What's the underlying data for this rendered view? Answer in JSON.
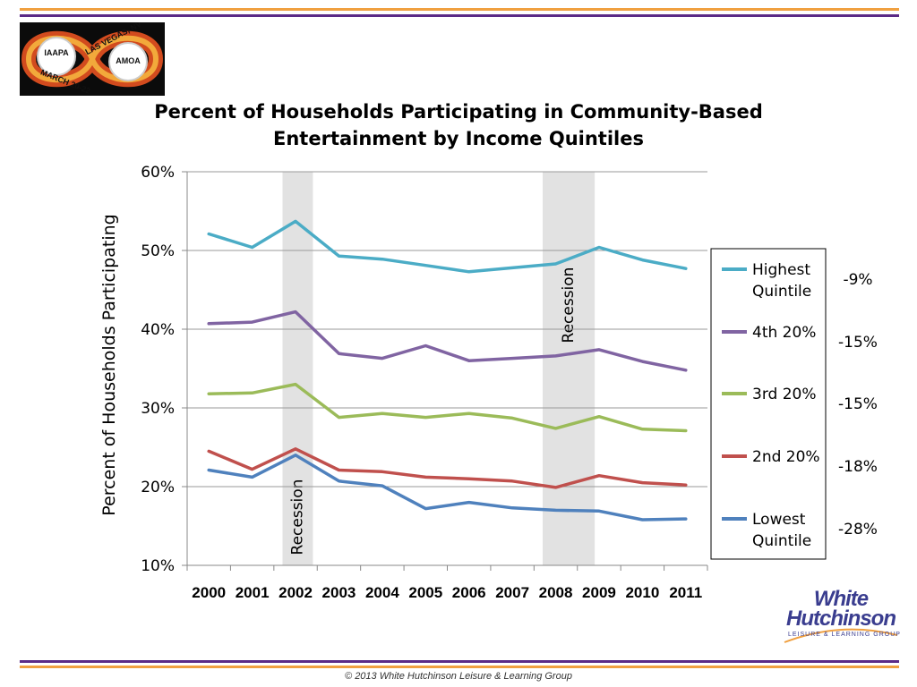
{
  "footer": "© 2013 White Hutchinson Leisure & Learning Group",
  "logo": {
    "top": "LAS VEGAS, NV",
    "bottom": "MARCH 20-22",
    "left_badge": "IAAPA",
    "right_badge": "AMOA"
  },
  "brand": {
    "line1": "White",
    "line2": "Hutchinson",
    "tagline": "LEISURE & LEARNING GROUP"
  },
  "chart_data": {
    "type": "line",
    "title": [
      "Percent of Households Participating in Community-Based",
      "Entertainment by Income Quintiles"
    ],
    "xlabel": "",
    "ylabel": "Percent of Households Participating",
    "categories": [
      "2000",
      "2001",
      "2002",
      "2003",
      "2004",
      "2005",
      "2006",
      "2007",
      "2008",
      "2009",
      "2010",
      "2011"
    ],
    "ylim": [
      10,
      60
    ],
    "yticks": [
      "10%",
      "20%",
      "30%",
      "40%",
      "50%",
      "60%"
    ],
    "grid": true,
    "series": [
      {
        "name": "Highest Quintile",
        "legend_lines": [
          "Highest",
          "Quintile"
        ],
        "color": "#4bacc6",
        "change": "-9%",
        "values": [
          52.1,
          50.4,
          53.7,
          49.3,
          48.9,
          48.1,
          47.3,
          47.8,
          48.3,
          50.4,
          48.8,
          47.7
        ]
      },
      {
        "name": "4th 20%",
        "legend_lines": [
          "4th 20%"
        ],
        "color": "#8064a2",
        "change": "-15%",
        "values": [
          40.7,
          40.9,
          42.2,
          36.9,
          36.3,
          37.9,
          36.0,
          36.3,
          36.6,
          37.4,
          35.9,
          34.8
        ]
      },
      {
        "name": "3rd 20%",
        "legend_lines": [
          "3rd 20%"
        ],
        "color": "#9bbb59",
        "change": "-15%",
        "values": [
          31.8,
          31.9,
          33.0,
          28.8,
          29.3,
          28.8,
          29.3,
          28.7,
          27.4,
          28.9,
          27.3,
          27.1
        ]
      },
      {
        "name": "2nd 20%",
        "legend_lines": [
          "2nd 20%"
        ],
        "color": "#c0504d",
        "change": "-18%",
        "values": [
          24.5,
          22.2,
          24.8,
          22.1,
          21.9,
          21.2,
          21.0,
          20.7,
          19.9,
          21.4,
          20.5,
          20.2
        ]
      },
      {
        "name": "Lowest Quintile",
        "legend_lines": [
          "Lowest",
          "Quintile"
        ],
        "color": "#4f81bd",
        "change": "-28%",
        "values": [
          22.1,
          21.2,
          24.0,
          20.7,
          20.1,
          17.2,
          18.0,
          17.3,
          17.0,
          16.9,
          15.8,
          15.9
        ]
      }
    ],
    "recessions": [
      {
        "label": "Recession",
        "start": 2001.7,
        "end": 2002.4
      },
      {
        "label": "Recession",
        "start": 2007.7,
        "end": 2008.9
      }
    ]
  }
}
